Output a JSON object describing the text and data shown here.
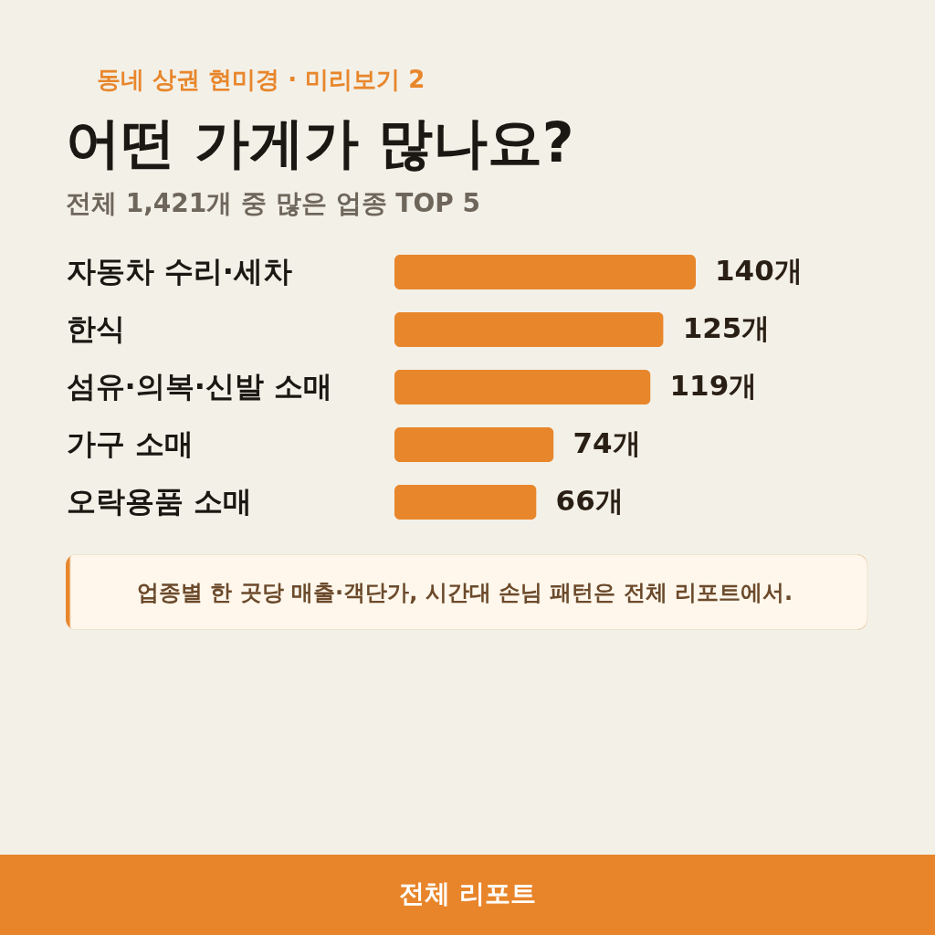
{
  "chart_data": {
    "type": "bar",
    "orientation": "horizontal",
    "title": "어떤 가게가 많나요?",
    "subtitle": "전체 1,421개 중 많은 업종 TOP 5",
    "categories": [
      "자동차 수리·세차",
      "한식",
      "섬유·의복·신발 소매",
      "가구 소매",
      "오락용품 소매"
    ],
    "values": [
      140,
      125,
      119,
      74,
      66
    ],
    "color": "#e8862b",
    "value_labels": [
      "140개",
      "125개",
      "119개",
      "74개",
      "66개"
    ],
    "xlim": [
      0,
      140
    ],
    "tick_labels": "y",
    "annotations": [
      "동네 상권 현미경 · 미리보기 2",
      "업종별 한 곳당 매출·객단가, 시간대 손님 패턴은 전체 리포트에서.",
      "전체 리포트"
    ]
  }
}
